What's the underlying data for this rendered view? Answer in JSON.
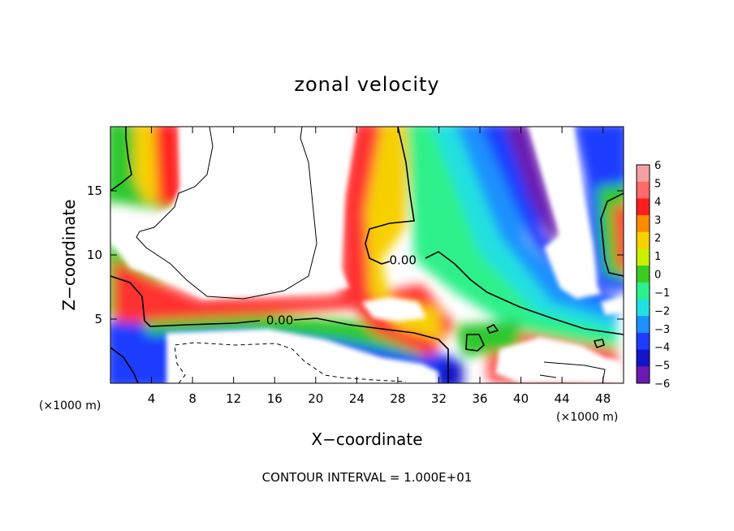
{
  "chart_data": {
    "type": "heatmap",
    "title": "zonal velocity",
    "xlabel": "X−coordinate",
    "ylabel": "Z−coordinate",
    "x_units_left": "(×1000 m)",
    "x_units_right": "(×1000 m)",
    "xlim": [
      0,
      50
    ],
    "ylim": [
      0,
      20
    ],
    "x_ticks": [
      4,
      8,
      12,
      16,
      20,
      24,
      28,
      32,
      36,
      40,
      44,
      48
    ],
    "x_tick_labels": [
      "4",
      "8",
      "12",
      "16",
      "20",
      "24",
      "28",
      "32",
      "36",
      "40",
      "44",
      "48"
    ],
    "y_ticks": [
      5,
      10,
      15
    ],
    "y_tick_labels": [
      "5",
      "10",
      "15"
    ],
    "colorbar": {
      "levels": [
        6,
        5,
        4,
        3,
        2,
        1,
        0,
        -1,
        -2,
        -3,
        -4,
        -5,
        -6
      ],
      "labels": [
        "6",
        "5",
        "4",
        "3",
        "2",
        "1",
        "0",
        "−1",
        "−2",
        "−3",
        "−4",
        "−5",
        "−6"
      ],
      "colors": [
        "#f5a0a0",
        "#ff6a6a",
        "#ff1e1e",
        "#ff8c00",
        "#f7d000",
        "#c8f000",
        "#3ccc22",
        "#2ef08a",
        "#20e0e0",
        "#1e90ff",
        "#1e3cff",
        "#1414c8",
        "#6a1ab0"
      ]
    },
    "contour_labels": [
      {
        "text": "0.00",
        "x": 16.5,
        "y": 4.9
      },
      {
        "text": "0.00",
        "x": 28.5,
        "y": 9.6
      }
    ],
    "footer": "CONTOUR INTERVAL = 1.000E+01"
  }
}
